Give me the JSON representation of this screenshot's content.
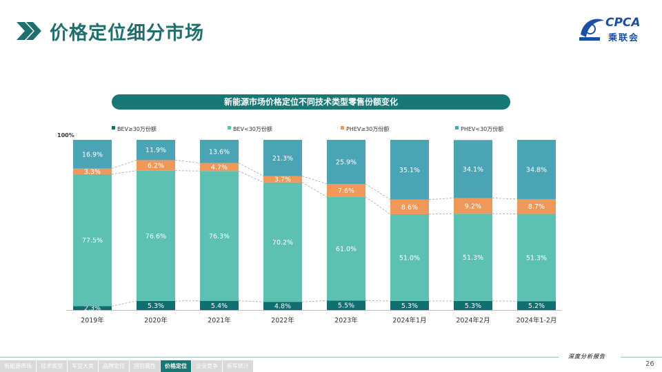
{
  "page": {
    "title": "价格定位细分市场",
    "logo_text": "CPCA",
    "logo_cn": "乘联会",
    "page_number": "26",
    "tagline": "深度分析报告"
  },
  "nav": {
    "items": [
      {
        "label": "新能源市场",
        "active": false
      },
      {
        "label": "技术类型",
        "active": false
      },
      {
        "label": "车型大类",
        "active": false
      },
      {
        "label": "品牌定位",
        "active": false
      },
      {
        "label": "国别属性",
        "active": false
      },
      {
        "label": "价格定位",
        "active": true
      },
      {
        "label": "企业竞争",
        "active": false
      },
      {
        "label": "新车统计",
        "active": false
      }
    ]
  },
  "chart_data": {
    "type": "bar",
    "stacked": true,
    "title": "新能源市场价格定位不同技术类型零售份额变化",
    "y_top_label": "100%",
    "ylim": [
      0,
      100
    ],
    "legend_position": "top",
    "categories": [
      "2019年",
      "2020年",
      "2021年",
      "2022年",
      "2023年",
      "2024年1月",
      "2024年2月",
      "2024年1-2月"
    ],
    "series": [
      {
        "name": "BEV≥30万份额",
        "color": "#0f6e70",
        "values": [
          2.3,
          5.3,
          5.4,
          4.8,
          5.5,
          5.3,
          5.3,
          5.2
        ],
        "labels": [
          "2.3%",
          "5.3%",
          "5.4%",
          "4.8%",
          "5.5%",
          "5.3%",
          "5.3%",
          "5.2%"
        ]
      },
      {
        "name": "BEV<30万份额",
        "color": "#5cc1b0",
        "values": [
          77.5,
          76.6,
          76.3,
          70.2,
          61.0,
          51.0,
          51.3,
          51.3
        ],
        "labels": [
          "77.5%",
          "76.6%",
          "76.3%",
          "70.2%",
          "61.0%",
          "51.0%",
          "51.3%",
          "51.3%"
        ]
      },
      {
        "name": "PHEV≥30万份额",
        "color": "#f0975a",
        "values": [
          3.3,
          6.2,
          4.7,
          3.7,
          7.6,
          8.6,
          9.2,
          8.7
        ],
        "labels": [
          "3.3%",
          "6.2%",
          "4.7%",
          "3.7%",
          "7.6%",
          "8.6%",
          "9.2%",
          "8.7%"
        ]
      },
      {
        "name": "PHEV<30万份额",
        "color": "#4aa4b5",
        "values": [
          16.9,
          11.9,
          13.6,
          21.3,
          25.9,
          35.1,
          34.1,
          34.8
        ],
        "labels": [
          "16.9%",
          "11.9%",
          "13.6%",
          "21.3%",
          "25.9%",
          "35.1%",
          "34.1%",
          "34.8%"
        ]
      }
    ]
  }
}
